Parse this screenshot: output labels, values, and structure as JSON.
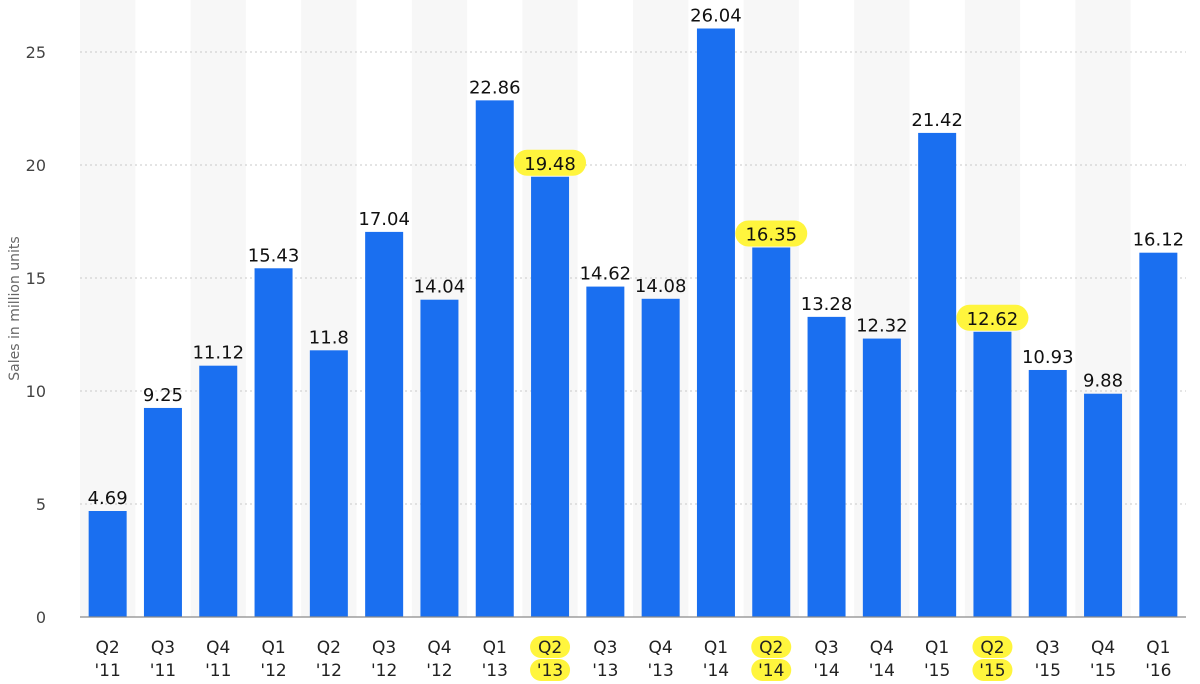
{
  "chart_data": {
    "type": "bar",
    "title": "",
    "xlabel": "",
    "ylabel": "Sales in million units",
    "ylim": [
      0,
      27
    ],
    "yticks": [
      0,
      5,
      10,
      15,
      20,
      25
    ],
    "grid": true,
    "legend": "none",
    "categories": [
      {
        "line1": "Q2",
        "line2": "'11"
      },
      {
        "line1": "Q3",
        "line2": "'11"
      },
      {
        "line1": "Q4",
        "line2": "'11"
      },
      {
        "line1": "Q1",
        "line2": "'12"
      },
      {
        "line1": "Q2",
        "line2": "'12"
      },
      {
        "line1": "Q3",
        "line2": "'12"
      },
      {
        "line1": "Q4",
        "line2": "'12"
      },
      {
        "line1": "Q1",
        "line2": "'13"
      },
      {
        "line1": "Q2",
        "line2": "'13"
      },
      {
        "line1": "Q3",
        "line2": "'13"
      },
      {
        "line1": "Q4",
        "line2": "'13"
      },
      {
        "line1": "Q1",
        "line2": "'14"
      },
      {
        "line1": "Q2",
        "line2": "'14"
      },
      {
        "line1": "Q3",
        "line2": "'14"
      },
      {
        "line1": "Q4",
        "line2": "'14"
      },
      {
        "line1": "Q1",
        "line2": "'15"
      },
      {
        "line1": "Q2",
        "line2": "'15"
      },
      {
        "line1": "Q3",
        "line2": "'15"
      },
      {
        "line1": "Q4",
        "line2": "'15"
      },
      {
        "line1": "Q1",
        "line2": "'16"
      }
    ],
    "values": [
      4.69,
      9.25,
      11.12,
      15.43,
      11.8,
      17.04,
      14.04,
      22.86,
      19.48,
      14.62,
      14.08,
      26.04,
      16.35,
      13.28,
      12.32,
      21.42,
      12.62,
      10.93,
      9.88,
      16.12
    ],
    "value_labels": [
      "4.69",
      "9.25",
      "11.12",
      "15.43",
      "11.8",
      "17.04",
      "14.04",
      "22.86",
      "19.48",
      "14.62",
      "14.08",
      "26.04",
      "16.35",
      "13.28",
      "12.32",
      "21.42",
      "12.62",
      "10.93",
      "9.88",
      "16.12"
    ],
    "highlighted": [
      8,
      12,
      16
    ],
    "colors": {
      "bar": "#1a6ff0",
      "highlight": "#fff53d",
      "band": "#f7f7f7"
    }
  }
}
